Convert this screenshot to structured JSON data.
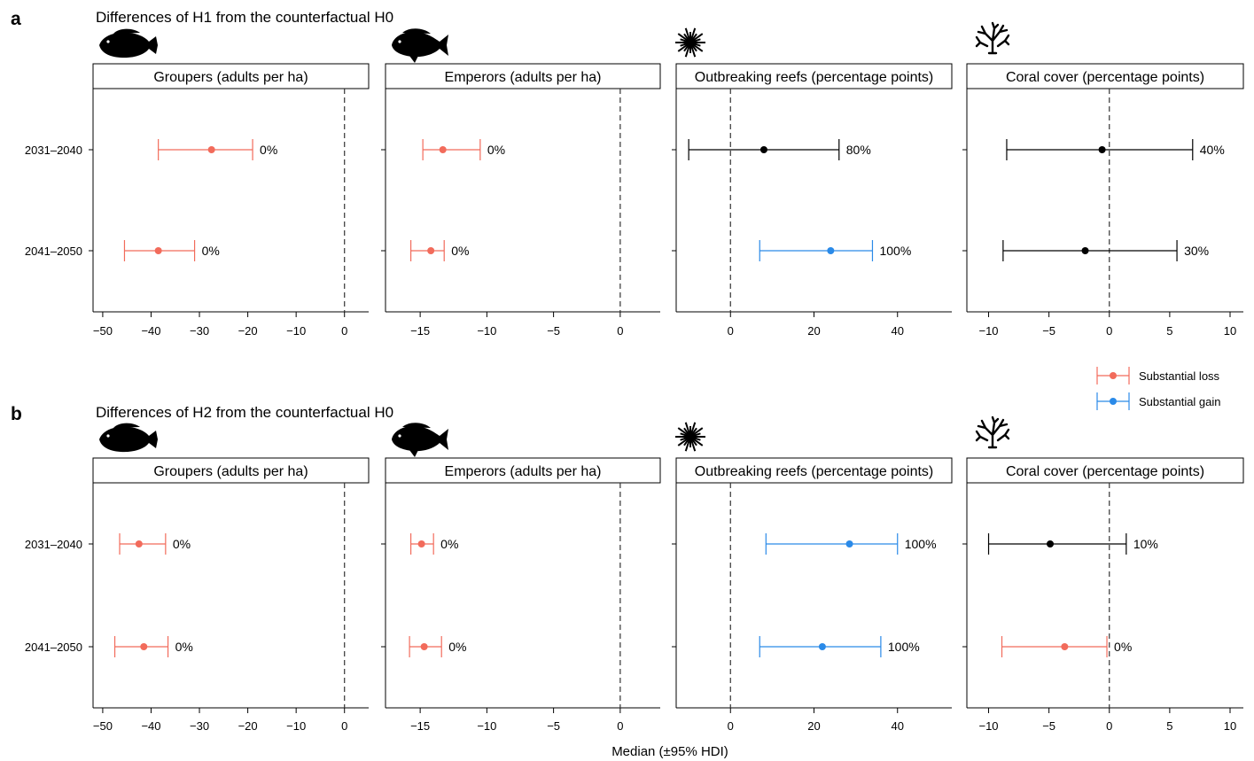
{
  "figure": {
    "panels": [
      {
        "letter": "a",
        "title": "Differences of H1 from the counterfactual H0"
      },
      {
        "letter": "b",
        "title": "Differences of H2 from the counterfactual H0"
      }
    ],
    "xlabel": "Median (±95% HDI)",
    "legend": {
      "position": "right, between panels",
      "items": [
        {
          "label": "Substantial loss",
          "color": "#f26b5b"
        },
        {
          "label": "Substantial gain",
          "color": "#2a8ae8"
        }
      ]
    },
    "subpanel_icons": [
      "grouper-fish-icon",
      "emperor-fish-icon",
      "crown-of-thorns-starfish-icon",
      "branching-coral-icon"
    ]
  },
  "colors": {
    "loss": "#f26b5b",
    "gain": "#2a8ae8",
    "neutral": "#000000"
  },
  "chart_data": [
    {
      "type": "scatter",
      "panel": "a",
      "title": "Groupers (adults per ha)",
      "xlim": [
        -52,
        5
      ],
      "xticks": [
        -50,
        -40,
        -30,
        -20,
        -10,
        0
      ],
      "reference_line": 0,
      "categories": [
        "2031–2040",
        "2041–2050"
      ],
      "points": [
        {
          "median": -27.5,
          "lower": -38.5,
          "upper": -19,
          "label": "0%",
          "status": "loss"
        },
        {
          "median": -38.5,
          "lower": -45.5,
          "upper": -31,
          "label": "0%",
          "status": "loss"
        }
      ]
    },
    {
      "type": "scatter",
      "panel": "a",
      "title": "Emperors (adults per ha)",
      "xlim": [
        -17.6,
        3
      ],
      "xticks": [
        -15,
        -10,
        -5,
        0
      ],
      "reference_line": 0,
      "categories": [
        "2031–2040",
        "2041–2050"
      ],
      "points": [
        {
          "median": -13.3,
          "lower": -14.8,
          "upper": -10.5,
          "label": "0%",
          "status": "loss"
        },
        {
          "median": -14.2,
          "lower": -15.7,
          "upper": -13.2,
          "label": "0%",
          "status": "loss"
        }
      ]
    },
    {
      "type": "scatter",
      "panel": "a",
      "title": "Outbreaking reefs (percentage points)",
      "xlim": [
        -13,
        53
      ],
      "xticks": [
        0,
        20,
        40
      ],
      "reference_line": 0,
      "categories": [
        "2031–2040",
        "2041–2050"
      ],
      "points": [
        {
          "median": 8,
          "lower": -10,
          "upper": 26,
          "label": "80%",
          "status": "neutral"
        },
        {
          "median": 24,
          "lower": 7,
          "upper": 34,
          "label": "100%",
          "status": "gain"
        }
      ]
    },
    {
      "type": "scatter",
      "panel": "a",
      "title": "Coral cover (percentage points)",
      "xlim": [
        -11.8,
        11.1
      ],
      "xticks": [
        -10,
        -5,
        0,
        5,
        10
      ],
      "reference_line": 0,
      "categories": [
        "2031–2040",
        "2041–2050"
      ],
      "points": [
        {
          "median": -0.6,
          "lower": -8.5,
          "upper": 6.9,
          "label": "40%",
          "status": "neutral"
        },
        {
          "median": -2,
          "lower": -8.8,
          "upper": 5.6,
          "label": "30%",
          "status": "neutral"
        }
      ]
    },
    {
      "type": "scatter",
      "panel": "b",
      "title": "Groupers (adults per ha)",
      "xlim": [
        -52,
        5
      ],
      "xticks": [
        -50,
        -40,
        -30,
        -20,
        -10,
        0
      ],
      "reference_line": 0,
      "categories": [
        "2031–2040",
        "2041–2050"
      ],
      "points": [
        {
          "median": -42.5,
          "lower": -46.5,
          "upper": -37,
          "label": "0%",
          "status": "loss"
        },
        {
          "median": -41.5,
          "lower": -47.5,
          "upper": -36.5,
          "label": "0%",
          "status": "loss"
        }
      ]
    },
    {
      "type": "scatter",
      "panel": "b",
      "title": "Emperors (adults per ha)",
      "xlim": [
        -17.6,
        3
      ],
      "xticks": [
        -15,
        -10,
        -5,
        0
      ],
      "reference_line": 0,
      "categories": [
        "2031–2040",
        "2041–2050"
      ],
      "points": [
        {
          "median": -14.9,
          "lower": -15.7,
          "upper": -14,
          "label": "0%",
          "status": "loss"
        },
        {
          "median": -14.7,
          "lower": -15.8,
          "upper": -13.4,
          "label": "0%",
          "status": "loss"
        }
      ]
    },
    {
      "type": "scatter",
      "panel": "b",
      "title": "Outbreaking reefs (percentage points)",
      "xlim": [
        -13,
        53
      ],
      "xticks": [
        0,
        20,
        40
      ],
      "reference_line": 0,
      "categories": [
        "2031–2040",
        "2041–2050"
      ],
      "points": [
        {
          "median": 28.5,
          "lower": 8.5,
          "upper": 40,
          "label": "100%",
          "status": "gain"
        },
        {
          "median": 22,
          "lower": 7,
          "upper": 36,
          "label": "100%",
          "status": "gain"
        }
      ]
    },
    {
      "type": "scatter",
      "panel": "b",
      "title": "Coral cover (percentage points)",
      "xlim": [
        -11.8,
        11.1
      ],
      "xticks": [
        -10,
        -5,
        0,
        5,
        10
      ],
      "reference_line": 0,
      "categories": [
        "2031–2040",
        "2041–2050"
      ],
      "points": [
        {
          "median": -4.9,
          "lower": -10,
          "upper": 1.4,
          "label": "10%",
          "status": "neutral"
        },
        {
          "median": -3.7,
          "lower": -8.9,
          "upper": -0.2,
          "label": "0%",
          "status": "loss"
        }
      ]
    }
  ]
}
